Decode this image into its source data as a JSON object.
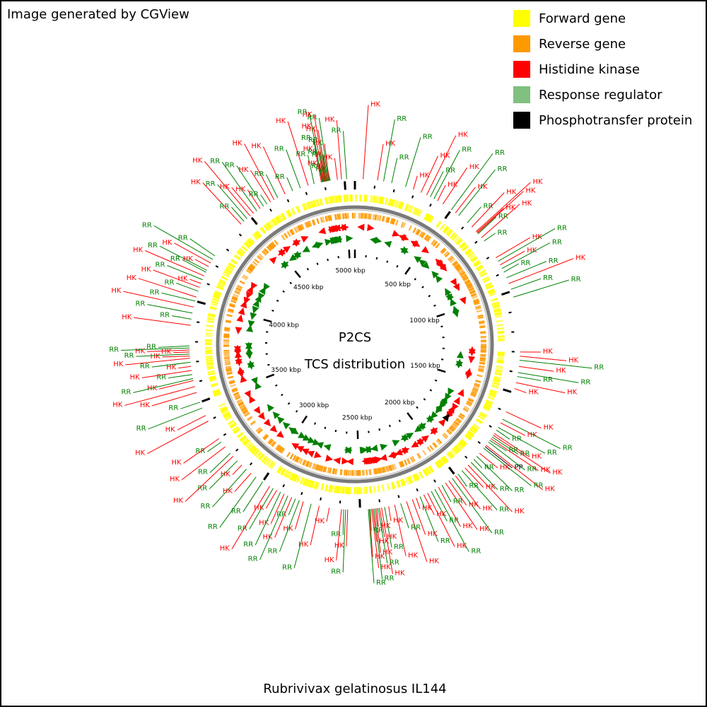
{
  "credit": "Image generated by CGView",
  "title_line1": "P2CS",
  "title_line2": "TCS distribution",
  "genome_name": "Rubrivivax gelatinosus IL144",
  "legend": [
    {
      "label": "Forward gene",
      "color": "#ffff00"
    },
    {
      "label": "Reverse gene",
      "color": "#ff9900"
    },
    {
      "label": "Histidine kinase",
      "color": "#ff0000"
    },
    {
      "label": "Response regulator",
      "color": "#80c080"
    },
    {
      "label": "Phosphotransfer protein",
      "color": "#000000"
    }
  ],
  "colors": {
    "hk": "#ff0000",
    "rr": "#008000",
    "pp": "#000000",
    "forward": "#ffff00",
    "reverse": "#ff9900",
    "backbone": "#7a7a7a",
    "hk_arrow": "#ff0000",
    "rr_arrow": "#008000"
  },
  "genome_length_kbp": 5050,
  "ticks": [
    {
      "kbp": 0,
      "label": ""
    },
    {
      "kbp": 500,
      "label": "500 kbp"
    },
    {
      "kbp": 1000,
      "label": "1000 kbp"
    },
    {
      "kbp": 1500,
      "label": "1500 kbp"
    },
    {
      "kbp": 2000,
      "label": "2000 kbp"
    },
    {
      "kbp": 2500,
      "label": "2500 kbp"
    },
    {
      "kbp": 3000,
      "label": "3000 kbp"
    },
    {
      "kbp": 3500,
      "label": "3500 kbp"
    },
    {
      "kbp": 4000,
      "label": "4000 kbp"
    },
    {
      "kbp": 4500,
      "label": "4500 kbp"
    },
    {
      "kbp": 5000,
      "label": "5000 kbp"
    }
  ],
  "features": [
    {
      "kbp": 4930,
      "type": "RR"
    },
    {
      "kbp": 4925,
      "type": "HK"
    },
    {
      "kbp": 4922,
      "type": "RR"
    },
    {
      "kbp": 4918,
      "type": "RR"
    },
    {
      "kbp": 4915,
      "type": "HK"
    },
    {
      "kbp": 4912,
      "type": "RR"
    },
    {
      "kbp": 4909,
      "type": "RR"
    },
    {
      "kbp": 4906,
      "type": "HK"
    },
    {
      "kbp": 4903,
      "type": "RR"
    },
    {
      "kbp": 4900,
      "type": "HK"
    },
    {
      "kbp": 4897,
      "type": "HK"
    },
    {
      "kbp": 4894,
      "type": "RR"
    },
    {
      "kbp": 4890,
      "type": "RR"
    },
    {
      "kbp": 4886,
      "type": "HK"
    },
    {
      "kbp": 4985,
      "type": "HK"
    },
    {
      "kbp": 4965,
      "type": "HK"
    },
    {
      "kbp": 5010,
      "type": "RR"
    },
    {
      "kbp": 40,
      "type": "HK"
    },
    {
      "kbp": 110,
      "type": "HK"
    },
    {
      "kbp": 140,
      "type": "RR"
    },
    {
      "kbp": 180,
      "type": "RR"
    },
    {
      "kbp": 250,
      "type": "RR"
    },
    {
      "kbp": 290,
      "type": "HK"
    },
    {
      "kbp": 330,
      "type": "HK"
    },
    {
      "kbp": 360,
      "type": "HK"
    },
    {
      "kbp": 380,
      "type": "RR"
    },
    {
      "kbp": 400,
      "type": "RR"
    },
    {
      "kbp": 420,
      "type": "HK"
    },
    {
      "kbp": 450,
      "type": "HK"
    },
    {
      "kbp": 500,
      "type": "RR"
    },
    {
      "kbp": 525,
      "type": "HK"
    },
    {
      "kbp": 545,
      "type": "RR"
    },
    {
      "kbp": 600,
      "type": "RR"
    },
    {
      "kbp": 630,
      "type": "HK"
    },
    {
      "kbp": 660,
      "type": "HK"
    },
    {
      "kbp": 665,
      "type": "HK"
    },
    {
      "kbp": 670,
      "type": "HK"
    },
    {
      "kbp": 675,
      "type": "RR"
    },
    {
      "kbp": 700,
      "type": "HK"
    },
    {
      "kbp": 720,
      "type": "RR"
    },
    {
      "kbp": 820,
      "type": "HK"
    },
    {
      "kbp": 840,
      "type": "RR"
    },
    {
      "kbp": 860,
      "type": "HK"
    },
    {
      "kbp": 880,
      "type": "RR"
    },
    {
      "kbp": 900,
      "type": "RR"
    },
    {
      "kbp": 930,
      "type": "RR"
    },
    {
      "kbp": 960,
      "type": "HK"
    },
    {
      "kbp": 990,
      "type": "RR"
    },
    {
      "kbp": 1030,
      "type": "RR"
    },
    {
      "kbp": 1300,
      "type": "HK"
    },
    {
      "kbp": 1320,
      "type": "HK"
    },
    {
      "kbp": 1340,
      "type": "RR"
    },
    {
      "kbp": 1370,
      "type": "HK"
    },
    {
      "kbp": 1400,
      "type": "RR"
    },
    {
      "kbp": 1420,
      "type": "RR"
    },
    {
      "kbp": 1450,
      "type": "HK"
    },
    {
      "kbp": 1480,
      "type": "HK"
    },
    {
      "kbp": 1600,
      "type": "HK"
    },
    {
      "kbp": 1640,
      "type": "RR"
    },
    {
      "kbp": 1660,
      "type": "HK"
    },
    {
      "kbp": 1685,
      "type": "RR"
    },
    {
      "kbp": 1700,
      "type": "RR"
    },
    {
      "kbp": 1720,
      "type": "HK"
    },
    {
      "kbp": 1730,
      "type": "HK"
    },
    {
      "kbp": 1740,
      "type": "RR"
    },
    {
      "kbp": 1750,
      "type": "HK"
    },
    {
      "kbp": 1760,
      "type": "RR"
    },
    {
      "kbp": 1770,
      "type": "RR"
    },
    {
      "kbp": 1790,
      "type": "HK"
    },
    {
      "kbp": 1798,
      "type": "PP"
    },
    {
      "kbp": 1808,
      "type": "RR"
    },
    {
      "kbp": 1840,
      "type": "HK"
    },
    {
      "kbp": 1860,
      "type": "RR"
    },
    {
      "kbp": 1880,
      "type": "RR"
    },
    {
      "kbp": 1900,
      "type": "RR"
    },
    {
      "kbp": 1920,
      "type": "HK"
    },
    {
      "kbp": 1940,
      "type": "HK"
    },
    {
      "kbp": 1960,
      "type": "RR"
    },
    {
      "kbp": 1985,
      "type": "RR"
    },
    {
      "kbp": 2000,
      "type": "HK"
    },
    {
      "kbp": 2020,
      "type": "RR"
    },
    {
      "kbp": 2040,
      "type": "HK"
    },
    {
      "kbp": 2060,
      "type": "HK"
    },
    {
      "kbp": 2080,
      "type": "RR"
    },
    {
      "kbp": 2100,
      "type": "HK"
    },
    {
      "kbp": 2120,
      "type": "RR"
    },
    {
      "kbp": 2140,
      "type": "RR"
    },
    {
      "kbp": 2160,
      "type": "HK"
    },
    {
      "kbp": 2180,
      "type": "HK"
    },
    {
      "kbp": 2200,
      "type": "RR"
    },
    {
      "kbp": 2220,
      "type": "HK"
    },
    {
      "kbp": 2240,
      "type": "HK"
    },
    {
      "kbp": 2270,
      "type": "HK"
    },
    {
      "kbp": 2300,
      "type": "RR"
    },
    {
      "kbp": 2330,
      "type": "HK"
    },
    {
      "kbp": 2360,
      "type": "HK"
    },
    {
      "kbp": 2380,
      "type": "RR"
    },
    {
      "kbp": 2395,
      "type": "HK"
    },
    {
      "kbp": 2405,
      "type": "HK"
    },
    {
      "kbp": 2412,
      "type": "RR"
    },
    {
      "kbp": 2418,
      "type": "HK"
    },
    {
      "kbp": 2425,
      "type": "HK"
    },
    {
      "kbp": 2432,
      "type": "RR"
    },
    {
      "kbp": 2438,
      "type": "HK"
    },
    {
      "kbp": 2444,
      "type": "HK"
    },
    {
      "kbp": 2450,
      "type": "RR"
    },
    {
      "kbp": 2455,
      "type": "HK"
    },
    {
      "kbp": 2460,
      "type": "RR"
    },
    {
      "kbp": 2560,
      "type": "HK"
    },
    {
      "kbp": 2570,
      "type": "RR"
    },
    {
      "kbp": 2580,
      "type": "RR"
    },
    {
      "kbp": 2590,
      "type": "HK"
    },
    {
      "kbp": 2650,
      "type": "HK"
    },
    {
      "kbp": 2700,
      "type": "HK"
    },
    {
      "kbp": 2740,
      "type": "RR"
    },
    {
      "kbp": 2780,
      "type": "HK"
    },
    {
      "kbp": 2800,
      "type": "RR"
    },
    {
      "kbp": 2820,
      "type": "RR"
    },
    {
      "kbp": 2840,
      "type": "HK"
    },
    {
      "kbp": 2860,
      "type": "RR"
    },
    {
      "kbp": 2880,
      "type": "HK"
    },
    {
      "kbp": 2900,
      "type": "RR"
    },
    {
      "kbp": 2920,
      "type": "HK"
    },
    {
      "kbp": 2940,
      "type": "RR"
    },
    {
      "kbp": 2960,
      "type": "HK"
    },
    {
      "kbp": 3000,
      "type": "RR"
    },
    {
      "kbp": 3040,
      "type": "RR"
    },
    {
      "kbp": 3070,
      "type": "HK"
    },
    {
      "kbp": 3100,
      "type": "RR"
    },
    {
      "kbp": 3130,
      "type": "HK"
    },
    {
      "kbp": 3160,
      "type": "RR"
    },
    {
      "kbp": 3190,
      "type": "HK"
    },
    {
      "kbp": 3210,
      "type": "RR"
    },
    {
      "kbp": 3250,
      "type": "HK"
    },
    {
      "kbp": 3280,
      "type": "RR"
    },
    {
      "kbp": 3300,
      "type": "HK"
    },
    {
      "kbp": 3400,
      "type": "HK"
    },
    {
      "kbp": 3430,
      "type": "HK"
    },
    {
      "kbp": 3470,
      "type": "RR"
    },
    {
      "kbp": 3500,
      "type": "RR"
    },
    {
      "kbp": 3550,
      "type": "HK"
    },
    {
      "kbp": 3580,
      "type": "HK"
    },
    {
      "kbp": 3610,
      "type": "HK"
    },
    {
      "kbp": 3620,
      "type": "RR"
    },
    {
      "kbp": 3640,
      "type": "RR"
    },
    {
      "kbp": 3660,
      "type": "HK"
    },
    {
      "kbp": 3680,
      "type": "HK"
    },
    {
      "kbp": 3700,
      "type": "RR"
    },
    {
      "kbp": 3720,
      "type": "HK"
    },
    {
      "kbp": 3730,
      "type": "HK"
    },
    {
      "kbp": 3740,
      "type": "RR"
    },
    {
      "kbp": 3750,
      "type": "HK"
    },
    {
      "kbp": 3760,
      "type": "HK"
    },
    {
      "kbp": 3770,
      "type": "RR"
    },
    {
      "kbp": 3780,
      "type": "RR"
    },
    {
      "kbp": 3880,
      "type": "HK"
    },
    {
      "kbp": 3910,
      "type": "RR"
    },
    {
      "kbp": 3940,
      "type": "RR"
    },
    {
      "kbp": 3970,
      "type": "HK"
    },
    {
      "kbp": 4000,
      "type": "RR"
    },
    {
      "kbp": 4020,
      "type": "HK"
    },
    {
      "kbp": 4050,
      "type": "RR"
    },
    {
      "kbp": 4070,
      "type": "HK"
    },
    {
      "kbp": 4090,
      "type": "HK"
    },
    {
      "kbp": 4110,
      "type": "RR"
    },
    {
      "kbp": 4130,
      "type": "HK"
    },
    {
      "kbp": 4150,
      "type": "RR"
    },
    {
      "kbp": 4160,
      "type": "RR"
    },
    {
      "kbp": 4180,
      "type": "HK"
    },
    {
      "kbp": 4200,
      "type": "HK"
    },
    {
      "kbp": 4220,
      "type": "RR"
    },
    {
      "kbp": 4240,
      "type": "RR"
    },
    {
      "kbp": 4440,
      "type": "HK"
    },
    {
      "kbp": 4460,
      "type": "RR"
    },
    {
      "kbp": 4480,
      "type": "RR"
    },
    {
      "kbp": 4500,
      "type": "HK"
    },
    {
      "kbp": 4520,
      "type": "HK"
    },
    {
      "kbp": 4540,
      "type": "RR"
    },
    {
      "kbp": 4560,
      "type": "HK"
    },
    {
      "kbp": 4580,
      "type": "RR"
    },
    {
      "kbp": 4600,
      "type": "RR"
    },
    {
      "kbp": 4620,
      "type": "HK"
    },
    {
      "kbp": 4640,
      "type": "HK"
    },
    {
      "kbp": 4660,
      "type": "RR"
    },
    {
      "kbp": 4700,
      "type": "HK"
    },
    {
      "kbp": 4740,
      "type": "RR"
    },
    {
      "kbp": 4780,
      "type": "RR"
    },
    {
      "kbp": 4820,
      "type": "HK"
    },
    {
      "kbp": 4850,
      "type": "RR"
    }
  ]
}
